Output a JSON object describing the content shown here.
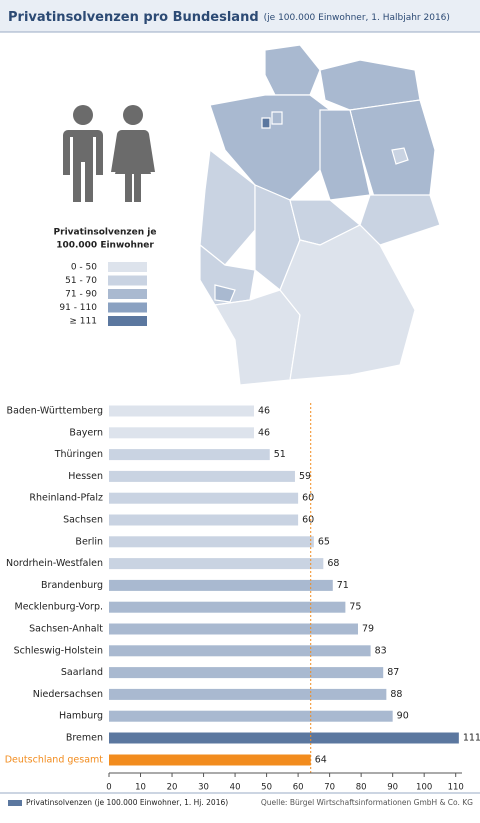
{
  "chart_data": {
    "type": "bar",
    "title": "Privatinsolvenzen pro Bundesland",
    "subtitle": "(je 100.000 Einwohner, 1. Halbjahr 2016)",
    "categories": [
      "Baden-Württemberg",
      "Bayern",
      "Thüringen",
      "Hessen",
      "Rheinland-Pfalz",
      "Sachsen",
      "Berlin",
      "Nordrhein-Westfalen",
      "Brandenburg",
      "Mecklenburg-Vorp.",
      "Sachsen-Anhalt",
      "Schleswig-Holstein",
      "Saarland",
      "Niedersachsen",
      "Hamburg",
      "Bremen",
      "Deutschland gesamt"
    ],
    "values": [
      46,
      46,
      51,
      59,
      60,
      60,
      65,
      68,
      71,
      75,
      79,
      83,
      87,
      88,
      90,
      111,
      64
    ],
    "colors": [
      "#dde3ec",
      "#dde3ec",
      "#c9d3e2",
      "#c9d3e2",
      "#c9d3e2",
      "#c9d3e2",
      "#c9d3e2",
      "#c9d3e2",
      "#a9b9d0",
      "#a9b9d0",
      "#a9b9d0",
      "#a9b9d0",
      "#a9b9d0",
      "#a9b9d0",
      "#a9b9d0",
      "#5b779f",
      "#f28c1e"
    ],
    "reference_line": {
      "value": 64,
      "color": "#f28c1e"
    },
    "xlim": [
      0,
      112
    ],
    "xticks": [
      0,
      10,
      20,
      30,
      40,
      50,
      60,
      70,
      80,
      90,
      100,
      110
    ],
    "legend_label": "Privatinsolvenzen (je 100.000 Einwohner, 1. Hj. 2016)",
    "legend_color": "#5b779f",
    "source": "Quelle: Bürgel Wirtschaftsinformationen GmbH & Co. KG"
  },
  "map_legend": {
    "title": [
      "Privatinsolvenzen je",
      "100.000 Einwohner"
    ],
    "items": [
      {
        "label": "0 - 50",
        "color": "#dde3ec"
      },
      {
        "label": "51 - 70",
        "color": "#c9d3e2"
      },
      {
        "label": "71 - 90",
        "color": "#a9b9d0"
      },
      {
        "label": "91 - 110",
        "color": "#8aa1c1"
      },
      {
        "label": "≥ 111",
        "color": "#5b779f"
      }
    ]
  }
}
